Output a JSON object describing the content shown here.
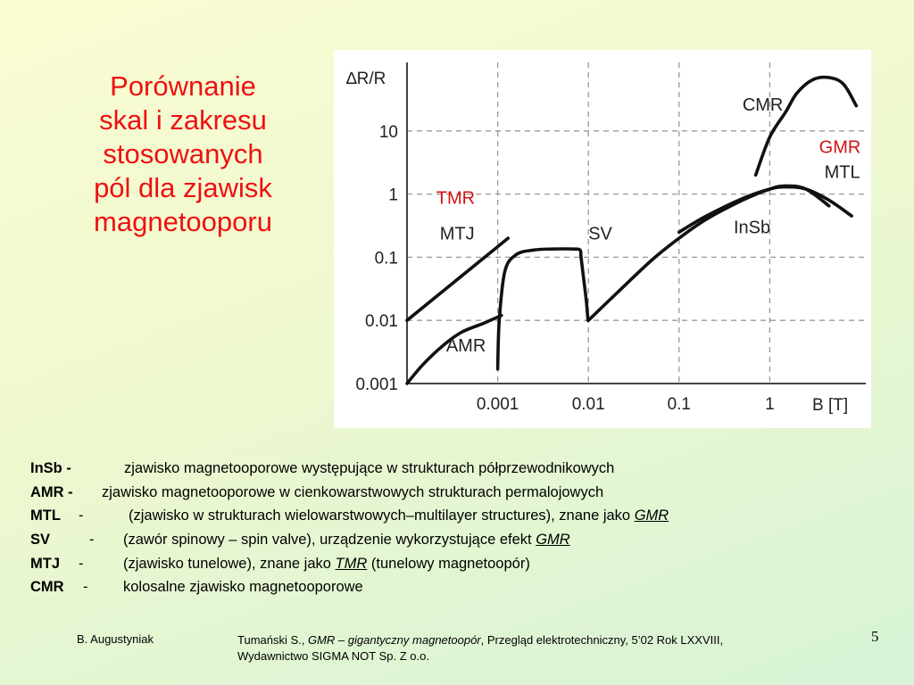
{
  "title_lines": [
    "Porównanie",
    "skal  i zakresu",
    "stosowanych",
    "pól dla zjawisk",
    "magnetooporu"
  ],
  "chart_data": {
    "type": "line",
    "y_axis_label": "∆R/R",
    "x_axis_label": "B [T]",
    "x_scale": "log",
    "y_scale": "log",
    "x_ticks": [
      "0.001",
      "0.01",
      "0.1",
      "1"
    ],
    "x_tick_values": [
      0.001,
      0.01,
      0.1,
      1
    ],
    "y_ticks": [
      "0.001",
      "0.01",
      "0.1",
      "1",
      "10"
    ],
    "y_tick_values": [
      0.001,
      0.01,
      0.1,
      1,
      10
    ],
    "xlim": [
      0.0001,
      10
    ],
    "ylim": [
      0.001,
      100
    ],
    "grid": true,
    "series": [
      {
        "name": "MTJ",
        "x": [
          0.0001,
          0.0013
        ],
        "y": [
          0.01,
          0.2
        ]
      },
      {
        "name": "AMR",
        "x": [
          0.0001,
          0.00015,
          0.00025,
          0.0004,
          0.0007,
          0.0011
        ],
        "y": [
          0.001,
          0.002,
          0.004,
          0.0065,
          0.009,
          0.012
        ]
      },
      {
        "name": "SV",
        "x": [
          0.001,
          0.00104,
          0.0012,
          0.0016,
          0.0025,
          0.004,
          0.0068,
          0.0081,
          0.0083,
          0.0088,
          0.0095,
          0.0099
        ],
        "y": [
          0.0017,
          0.01,
          0.06,
          0.11,
          0.13,
          0.135,
          0.135,
          0.13,
          0.1,
          0.05,
          0.02,
          0.01
        ]
      },
      {
        "name": "InSb",
        "x": [
          0.01,
          0.02,
          0.05,
          0.1,
          0.2,
          0.5,
          1.0,
          1.5,
          2.5,
          4.5
        ],
        "y": [
          0.01,
          0.026,
          0.09,
          0.2,
          0.4,
          0.8,
          1.2,
          1.35,
          1.2,
          0.65
        ]
      },
      {
        "name": "MTL",
        "x": [
          0.1,
          0.2,
          0.5,
          1.0,
          1.5,
          2.5,
          4.5,
          8.0
        ],
        "y": [
          0.25,
          0.45,
          0.85,
          1.2,
          1.3,
          1.2,
          0.8,
          0.45
        ]
      },
      {
        "name": "CMR",
        "x": [
          0.7,
          1.0,
          1.5,
          2.0,
          3.0,
          4.5,
          6.5,
          9.0
        ],
        "y": [
          2,
          8,
          20,
          40,
          65,
          70,
          55,
          25
        ]
      }
    ],
    "annotations": [
      {
        "text": "CMR",
        "x": 0.5,
        "y": 21,
        "color": "#222222"
      },
      {
        "text": "GMR",
        "x": 3.5,
        "y": 4.5,
        "color": "#d11111"
      },
      {
        "text": "MTL",
        "x": 4.0,
        "y": 1.8,
        "color": "#222222"
      },
      {
        "text": "TMR",
        "x": 0.00021,
        "y": 0.7,
        "color": "#d11111"
      },
      {
        "text": "MTJ",
        "x": 0.00023,
        "y": 0.19,
        "color": "#222222"
      },
      {
        "text": "SV",
        "x": 0.01,
        "y": 0.19,
        "color": "#222222"
      },
      {
        "text": "InSb",
        "x": 0.4,
        "y": 0.24,
        "color": "#222222"
      },
      {
        "text": "AMR",
        "x": 0.00027,
        "y": 0.0032,
        "color": "#222222"
      }
    ]
  },
  "legend": [
    {
      "term": "InSb -",
      "dash": "",
      "desc": "zjawisko magnetooporowe występujące w strukturach półprzewodnikowych"
    },
    {
      "term": "AMR -",
      "dash": "",
      "desc": "zjawisko magnetooporowe w cienkowarstwowych strukturach permalojowych"
    },
    {
      "term": "MTL",
      "dash": "-",
      "desc": "(zjawisko w strukturach wielowarstwowych–multilayer structures), znane jako ",
      "em": "GMR"
    },
    {
      "term": "SV",
      "dash": "-",
      "desc": "(zawór spinowy – spin valve), urządzenie wykorzystujące efekt ",
      "em": "GMR"
    },
    {
      "term": "MTJ",
      "dash": "-",
      "desc": "(zjawisko tunelowe), znane jako ",
      "em": "TMR",
      "desc_after": " (tunelowy magnetoopór)"
    },
    {
      "term": "CMR",
      "dash": "-",
      "desc": "kolosalne zjawisko magnetooporowe"
    }
  ],
  "footer": {
    "author": "B. Augustyniak",
    "ref_author": "Tumański S., ",
    "ref_title": "GMR – gigantyczny magnetoopór",
    "ref_rest": ", Przegląd elektrotechniczny, 5’02 Rok LXXVIII,",
    "ref_line2": "Wydawnictwo SIGMA NOT Sp. Z o.o.",
    "page_number": "5"
  }
}
